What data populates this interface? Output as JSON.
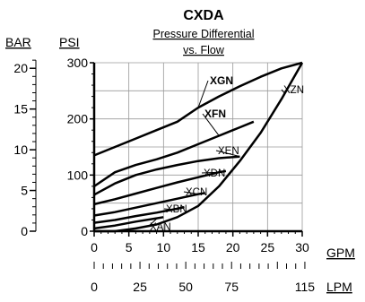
{
  "chart_data": {
    "type": "line",
    "title": "CXDA",
    "subtitle_line1": "Pressure Differential",
    "subtitle_line2": "vs. Flow",
    "x_unit_primary": "GPM",
    "x_unit_secondary": "LPM",
    "y_unit_primary": "PSI",
    "y_unit_secondary": "BAR",
    "xlim": [
      0,
      30
    ],
    "ylim": [
      0,
      300
    ],
    "x_ticks": [
      "0",
      "5",
      "10",
      "15",
      "20",
      "25",
      "30"
    ],
    "y_ticks": [
      "0",
      "100",
      "200",
      "300"
    ],
    "x2_ticks": [
      "0",
      "25",
      "50",
      "75",
      "115"
    ],
    "y2_ticks": [
      "0",
      "5",
      "10",
      "15",
      "20"
    ],
    "grid": true,
    "series": [
      {
        "name": "XAN",
        "x": [
          0,
          3,
          6,
          9,
          10
        ],
        "y": [
          5,
          10,
          17,
          23,
          25
        ]
      },
      {
        "name": "XBN",
        "x": [
          0,
          3,
          6,
          9,
          12,
          13
        ],
        "y": [
          15,
          20,
          27,
          33,
          40,
          43
        ]
      },
      {
        "name": "XCN",
        "x": [
          0,
          3,
          6,
          9,
          12,
          15,
          16
        ],
        "y": [
          28,
          34,
          42,
          50,
          58,
          66,
          68
        ]
      },
      {
        "name": "XDN",
        "x": [
          0,
          3,
          6,
          9,
          12,
          15,
          18,
          19
        ],
        "y": [
          48,
          57,
          67,
          77,
          87,
          96,
          105,
          107
        ]
      },
      {
        "name": "XEN",
        "x": [
          0,
          3,
          6,
          9,
          12,
          15,
          18,
          21
        ],
        "y": [
          65,
          85,
          100,
          110,
          118,
          125,
          130,
          133
        ]
      },
      {
        "name": "XFN",
        "x": [
          0,
          3,
          6,
          9,
          12,
          15,
          18,
          21,
          23
        ],
        "y": [
          80,
          105,
          118,
          128,
          140,
          155,
          170,
          185,
          195
        ]
      },
      {
        "name": "XGN",
        "x": [
          0,
          3,
          6,
          9,
          12,
          15,
          18,
          21,
          24,
          27,
          30
        ],
        "y": [
          135,
          150,
          165,
          180,
          195,
          220,
          240,
          258,
          275,
          290,
          300
        ]
      },
      {
        "name": "XZN",
        "x": [
          0,
          3,
          6,
          9,
          12,
          15,
          18,
          21,
          24,
          27,
          30
        ],
        "y": [
          0,
          0,
          5,
          12,
          25,
          45,
          80,
          125,
          175,
          235,
          300
        ]
      }
    ]
  }
}
